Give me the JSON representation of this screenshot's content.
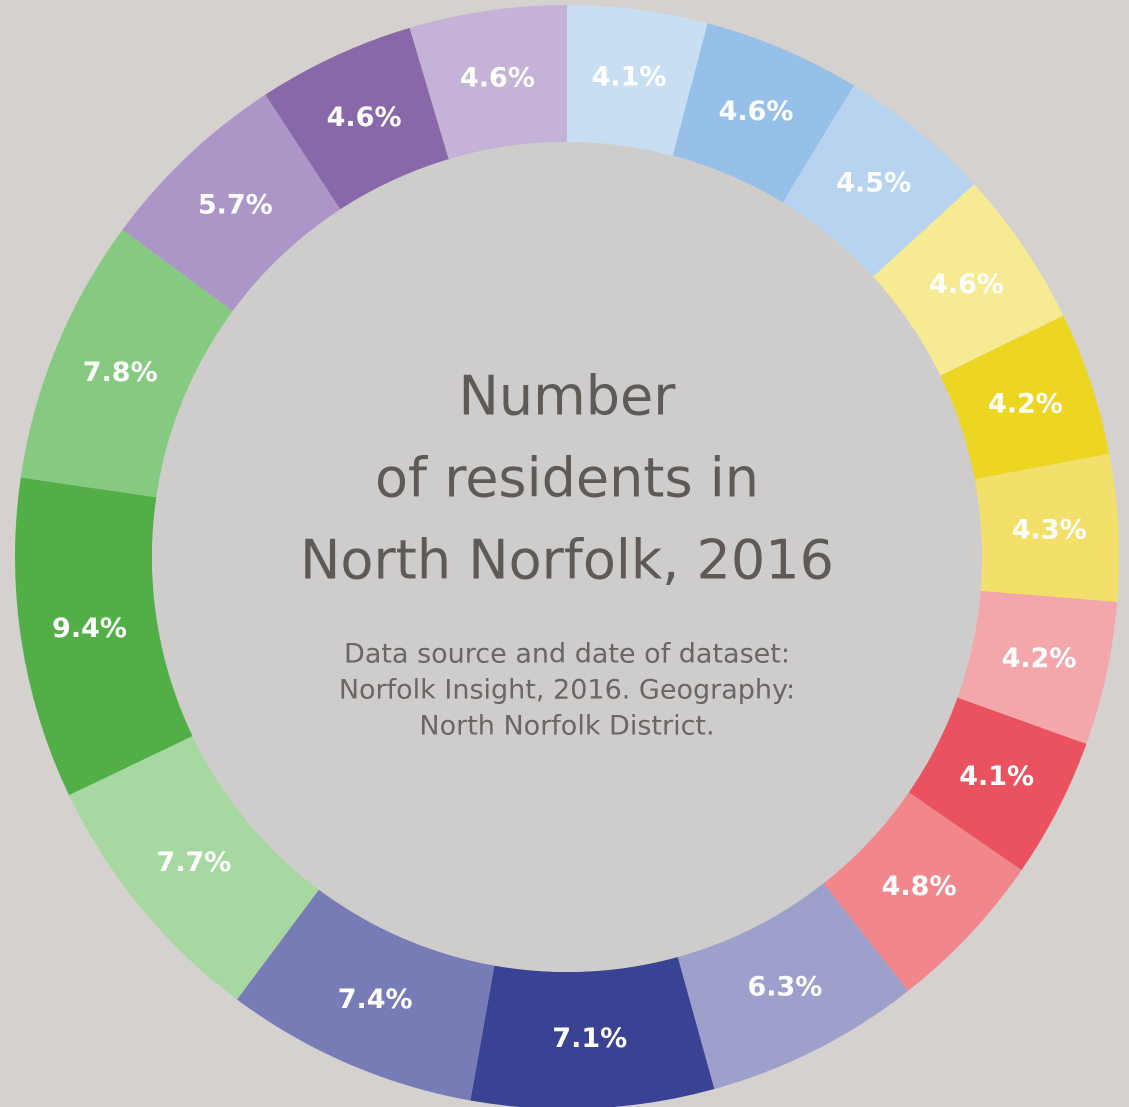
{
  "chart_data": {
    "type": "pie",
    "title": [
      "Number",
      "of residents in",
      "North Norfolk, 2016"
    ],
    "subtitle": [
      "Data source and date of dataset:",
      "Norfolk Insight, 2016. Geography:",
      "North Norfolk District."
    ],
    "values": [
      4.1,
      4.6,
      4.5,
      4.6,
      4.2,
      4.3,
      4.2,
      4.1,
      4.8,
      6.3,
      7.1,
      7.4,
      7.7,
      9.4,
      7.8,
      5.7,
      4.6,
      4.6
    ],
    "value_labels": [
      "4.1%",
      "4.6%",
      "4.5%",
      "4.6%",
      "4.2%",
      "4.3%",
      "4.2%",
      "4.1%",
      "4.8%",
      "6.3%",
      "7.1%",
      "7.4%",
      "7.7%",
      "9.4%",
      "7.8%",
      "5.7%",
      "4.6%",
      "4.6%"
    ],
    "colors": [
      "#c8dff3",
      "#97c0e8",
      "#b7d3ef",
      "#f6ea93",
      "#ecd621",
      "#f2e06a",
      "#f3a7ab",
      "#e9525e",
      "#f1878d",
      "#9da0cb",
      "#3a4293",
      "#777cb6",
      "#a8d8a2",
      "#52ae47",
      "#86c980",
      "#ac96c7",
      "#8868a8",
      "#c4b3d7"
    ],
    "donut": true
  }
}
